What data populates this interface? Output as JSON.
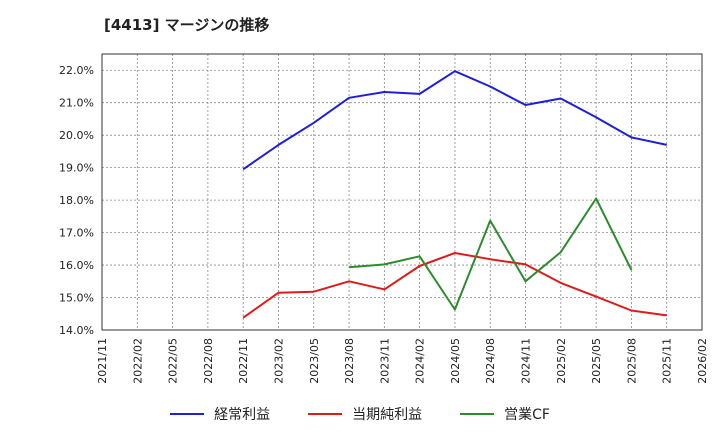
{
  "chart_data": {
    "type": "line",
    "title": "[4413]  マージンの推移",
    "xlabel": "",
    "ylabel": "",
    "x_ticks": [
      "2021/11",
      "2022/02",
      "2022/05",
      "2022/08",
      "2022/11",
      "2023/02",
      "2023/05",
      "2023/08",
      "2023/11",
      "2024/02",
      "2024/05",
      "2024/08",
      "2024/11",
      "2025/02",
      "2025/05",
      "2025/08",
      "2025/11",
      "2026/02"
    ],
    "y_ticks": [
      "14.0%",
      "15.0%",
      "16.0%",
      "17.0%",
      "18.0%",
      "19.0%",
      "20.0%",
      "21.0%",
      "22.0%"
    ],
    "ylim": [
      14.0,
      22.5
    ],
    "grid": true,
    "legend_position": "bottom",
    "series": [
      {
        "name": "経常利益",
        "color": "#1f1fd8",
        "x": [
          "2022/11",
          "2023/02",
          "2023/05",
          "2023/08",
          "2023/11",
          "2024/02",
          "2024/05",
          "2024/08",
          "2024/11",
          "2025/02",
          "2025/05",
          "2025/08",
          "2025/11"
        ],
        "values": [
          18.95,
          19.7,
          20.38,
          21.15,
          21.33,
          21.27,
          21.97,
          21.5,
          20.93,
          21.13,
          20.55,
          19.93,
          19.7
        ]
      },
      {
        "name": "当期純利益",
        "color": "#dd1b1b",
        "x": [
          "2022/11",
          "2023/02",
          "2023/05",
          "2023/08",
          "2023/11",
          "2024/02",
          "2024/05",
          "2024/08",
          "2024/11",
          "2025/02",
          "2025/05",
          "2025/08",
          "2025/11"
        ],
        "values": [
          14.38,
          15.15,
          15.18,
          15.5,
          15.25,
          15.97,
          16.37,
          16.18,
          16.02,
          15.45,
          15.03,
          14.6,
          14.45
        ]
      },
      {
        "name": "営業CF",
        "color": "#2e8b2e",
        "x": [
          "2023/08",
          "2023/11",
          "2024/02",
          "2024/05",
          "2024/08",
          "2024/11",
          "2025/02",
          "2025/05",
          "2025/08"
        ],
        "values": [
          15.93,
          16.02,
          16.27,
          14.63,
          17.37,
          15.5,
          16.4,
          18.05,
          15.85
        ]
      }
    ]
  }
}
